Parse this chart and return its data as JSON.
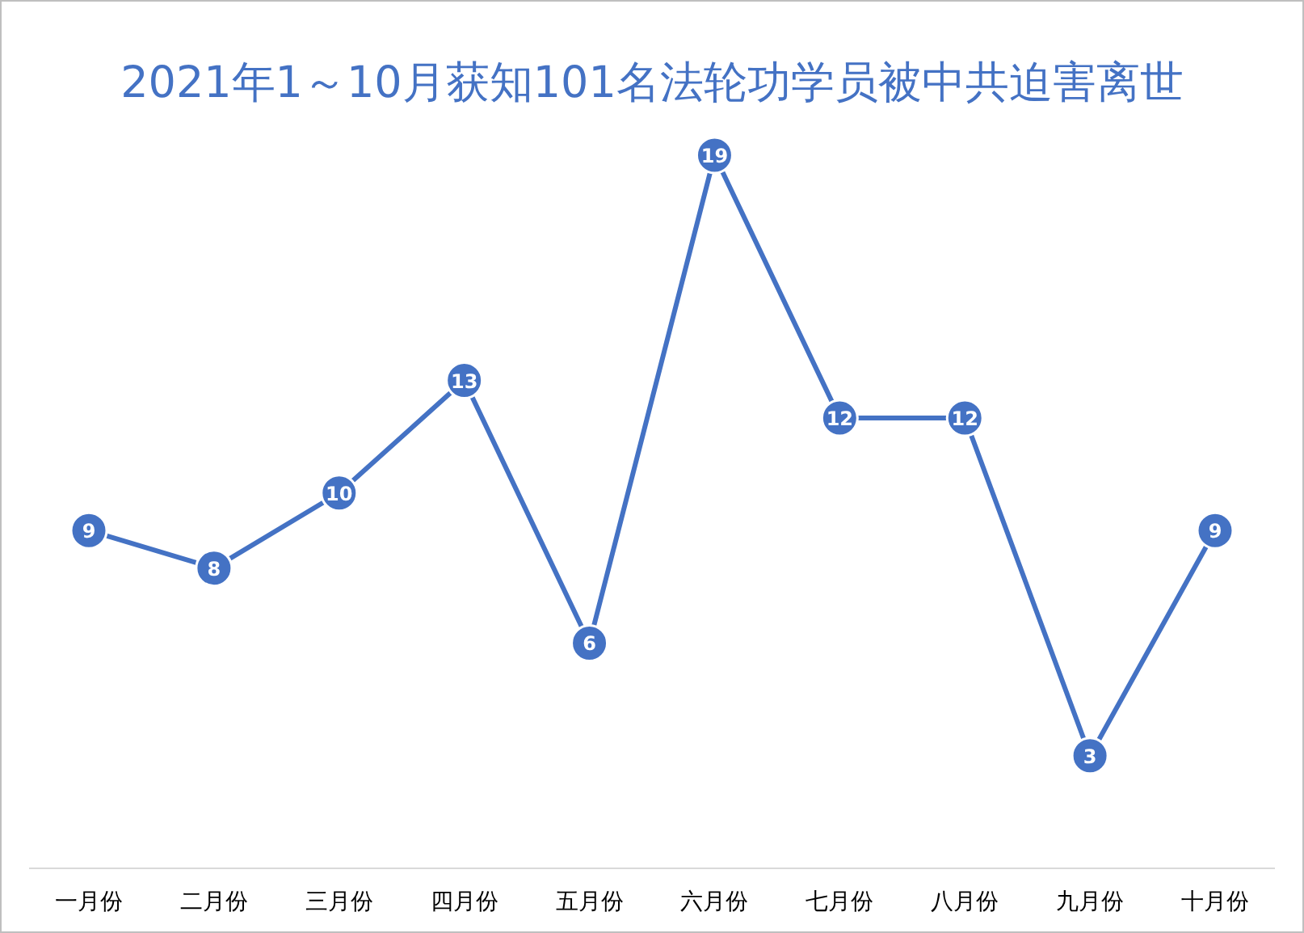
{
  "chart_data": {
    "type": "line",
    "title": "2021年1～10月获知101名法轮功学员被中共迫害离世",
    "categories": [
      "一月份",
      "二月份",
      "三月份",
      "四月份",
      "五月份",
      "六月份",
      "七月份",
      "八月份",
      "九月份",
      "十月份"
    ],
    "series": [
      {
        "color": "#4472c4",
        "values": [
          9,
          8,
          10,
          13,
          6,
          19,
          12,
          12,
          3,
          9
        ]
      }
    ],
    "data_labels": true,
    "marker": "circle",
    "line_style": "solid"
  }
}
